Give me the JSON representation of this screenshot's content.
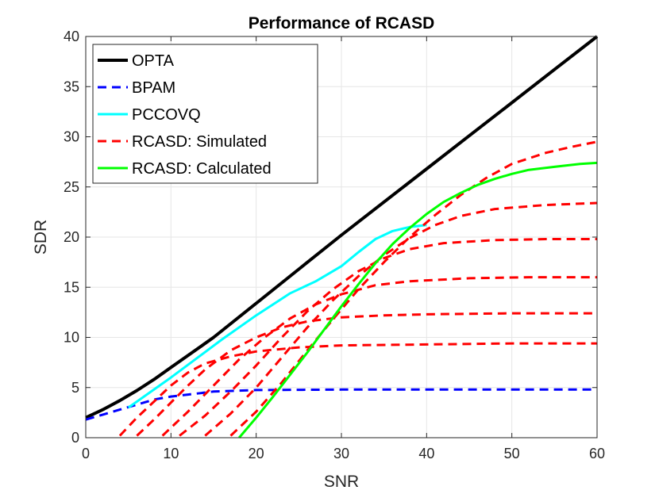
{
  "chart_data": {
    "type": "line",
    "title": "Performance of RCASD",
    "xlabel": "SNR",
    "ylabel": "SDR",
    "xlim": [
      0,
      60
    ],
    "ylim": [
      0,
      40
    ],
    "xticks": [
      0,
      10,
      20,
      30,
      40,
      50,
      60
    ],
    "yticks": [
      0,
      5,
      10,
      15,
      20,
      25,
      30,
      35,
      40
    ],
    "grid": true,
    "legend_position": "top-left",
    "colors": {
      "opta": "#000000",
      "bpam": "#0000ff",
      "pccovq": "#00ffff",
      "simulated": "#ff0000",
      "calculated": "#00ff00",
      "grid": "#e6e6e6",
      "axis": "#262626"
    },
    "legend": [
      {
        "label": "OPTA",
        "series": "opta"
      },
      {
        "label": "BPAM",
        "series": "bpam"
      },
      {
        "label": "PCCOVQ",
        "series": "pccovq"
      },
      {
        "label": "RCASD: Simulated",
        "series": "simulated"
      },
      {
        "label": "RCASD: Calculated",
        "series": "calculated"
      }
    ],
    "series": [
      {
        "name": "OPTA",
        "key": "opta",
        "style": "solid",
        "width": 4,
        "x": [
          0,
          2,
          4,
          6,
          8,
          10,
          12,
          15,
          20,
          25,
          30,
          35,
          40,
          45,
          50,
          55,
          60
        ],
        "y": [
          2.0,
          2.8,
          3.7,
          4.7,
          5.8,
          7.0,
          8.2,
          10.0,
          13.4,
          16.8,
          20.2,
          23.5,
          26.8,
          30.1,
          33.4,
          36.7,
          40.0
        ]
      },
      {
        "name": "BPAM",
        "key": "bpam",
        "style": "dashed",
        "width": 3,
        "x": [
          0,
          2,
          4,
          6,
          8,
          10,
          12,
          15,
          20,
          30,
          40,
          50,
          60
        ],
        "y": [
          1.8,
          2.3,
          2.8,
          3.3,
          3.8,
          4.1,
          4.3,
          4.6,
          4.75,
          4.8,
          4.8,
          4.8,
          4.8
        ]
      },
      {
        "name": "PCCOVQ",
        "key": "pccovq",
        "style": "solid",
        "width": 3,
        "x": [
          5,
          7,
          10,
          13,
          16,
          20,
          24,
          27,
          30,
          32,
          34,
          36,
          38,
          40
        ],
        "y": [
          3.0,
          4.2,
          6.0,
          7.9,
          9.8,
          12.2,
          14.4,
          15.6,
          17.1,
          18.5,
          19.8,
          20.6,
          21.0,
          21.2
        ]
      },
      {
        "name": "RCASD: Simulated 1",
        "key": "simulated",
        "style": "dashed",
        "width": 3,
        "x": [
          4,
          6,
          8,
          10,
          12,
          14,
          17,
          20,
          25,
          30,
          40,
          50,
          60
        ],
        "y": [
          0.2,
          2.0,
          3.6,
          5.2,
          6.5,
          7.4,
          8.1,
          8.6,
          9.0,
          9.2,
          9.3,
          9.4,
          9.4
        ]
      },
      {
        "name": "RCASD: Simulated 2",
        "key": "simulated",
        "style": "dashed",
        "width": 3,
        "x": [
          6,
          8,
          10,
          12,
          14,
          17,
          20,
          23,
          26,
          30,
          35,
          40,
          50,
          60
        ],
        "y": [
          0.2,
          1.8,
          3.5,
          5.2,
          6.8,
          8.7,
          10.0,
          11.0,
          11.6,
          12.0,
          12.2,
          12.3,
          12.4,
          12.4
        ]
      },
      {
        "name": "RCASD: Simulated 3",
        "key": "simulated",
        "style": "dashed",
        "width": 3,
        "x": [
          9,
          12,
          15,
          18,
          21,
          24,
          27,
          30,
          34,
          38,
          45,
          52,
          60
        ],
        "y": [
          0.2,
          2.6,
          5.2,
          7.8,
          10.0,
          11.9,
          13.3,
          14.3,
          15.2,
          15.6,
          15.9,
          16.0,
          16.0
        ]
      },
      {
        "name": "RCASD: Simulated 4",
        "key": "simulated",
        "style": "dashed",
        "width": 3,
        "x": [
          11,
          14,
          17,
          20,
          23,
          26,
          29,
          32,
          35,
          38,
          42,
          48,
          54,
          60
        ],
        "y": [
          0.2,
          2.2,
          4.6,
          7.2,
          10.0,
          12.6,
          14.8,
          16.6,
          17.9,
          18.8,
          19.4,
          19.7,
          19.8,
          19.8
        ]
      },
      {
        "name": "RCASD: Simulated 5",
        "key": "simulated",
        "style": "dashed",
        "width": 3,
        "x": [
          14,
          17,
          20,
          23,
          26,
          29,
          32,
          35,
          38,
          41,
          44,
          48,
          54,
          60
        ],
        "y": [
          0.2,
          2.4,
          5.0,
          8.0,
          11.0,
          13.7,
          16.1,
          18.2,
          19.9,
          21.2,
          22.1,
          22.8,
          23.2,
          23.4
        ]
      },
      {
        "name": "RCASD: Simulated 6",
        "key": "simulated",
        "style": "dashed",
        "width": 3,
        "x": [
          17,
          20,
          23,
          26,
          29,
          32,
          35,
          38,
          41,
          44,
          47,
          50,
          54,
          57,
          60
        ],
        "y": [
          0.2,
          2.6,
          5.5,
          8.7,
          11.8,
          14.8,
          17.5,
          20.0,
          22.2,
          24.2,
          25.9,
          27.3,
          28.4,
          29.0,
          29.5
        ]
      },
      {
        "name": "RCASD: Calculated",
        "key": "calculated",
        "style": "solid",
        "width": 3,
        "x": [
          18,
          20,
          22,
          24,
          26,
          28,
          30,
          32,
          34,
          36,
          38,
          40,
          42,
          44,
          46,
          48,
          50,
          52,
          55,
          58,
          60
        ],
        "y": [
          0.0,
          2.0,
          4.1,
          6.3,
          8.5,
          10.8,
          13.1,
          15.3,
          17.4,
          19.3,
          20.9,
          22.3,
          23.5,
          24.4,
          25.2,
          25.8,
          26.3,
          26.7,
          27.0,
          27.3,
          27.4
        ]
      }
    ]
  }
}
